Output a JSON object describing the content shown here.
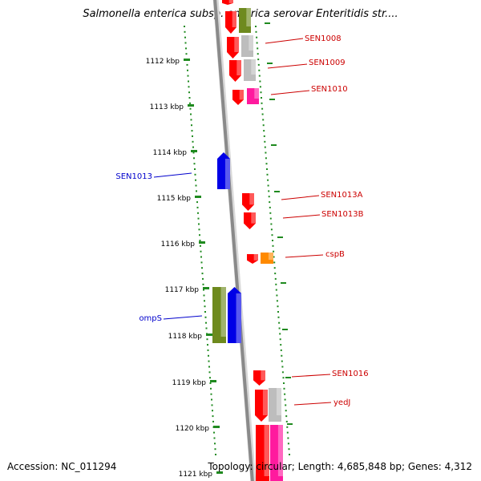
{
  "title": "Salmonella enterica subsp. enterica serovar Enteritidis str....",
  "accession": "Accession: NC_011294",
  "topology": "Topology: circular; Length: 4,685,848 bp; Genes: 4,312",
  "colors": {
    "backbone": "#8a8a8a",
    "tick": "#1f8a1f",
    "red": "#ff0000",
    "blue": "#0000e6",
    "olive": "#6e8a1e",
    "gray": "#bdbdbd",
    "magenta": "#ff1a9e",
    "orange": "#ff8a00",
    "label_red": "#cc0000",
    "label_blue": "#0000cc"
  },
  "kbp_labels": [
    "1112 kbp",
    "1113 kbp",
    "1114 kbp",
    "1115 kbp",
    "1116 kbp",
    "1117 kbp",
    "1118 kbp",
    "1119 kbp",
    "1120 kbp",
    "1121 kbp"
  ],
  "gene_labels": [
    {
      "name": "SEN1008",
      "strand": "right"
    },
    {
      "name": "SEN1009",
      "strand": "right"
    },
    {
      "name": "SEN1010",
      "strand": "right"
    },
    {
      "name": "SEN1013",
      "strand": "left"
    },
    {
      "name": "SEN1013A",
      "strand": "right"
    },
    {
      "name": "SEN1013B",
      "strand": "right"
    },
    {
      "name": "cspB",
      "strand": "right"
    },
    {
      "name": "ompS",
      "strand": "left"
    },
    {
      "name": "SEN1016",
      "strand": "right"
    },
    {
      "name": "yedJ",
      "strand": "right"
    }
  ]
}
